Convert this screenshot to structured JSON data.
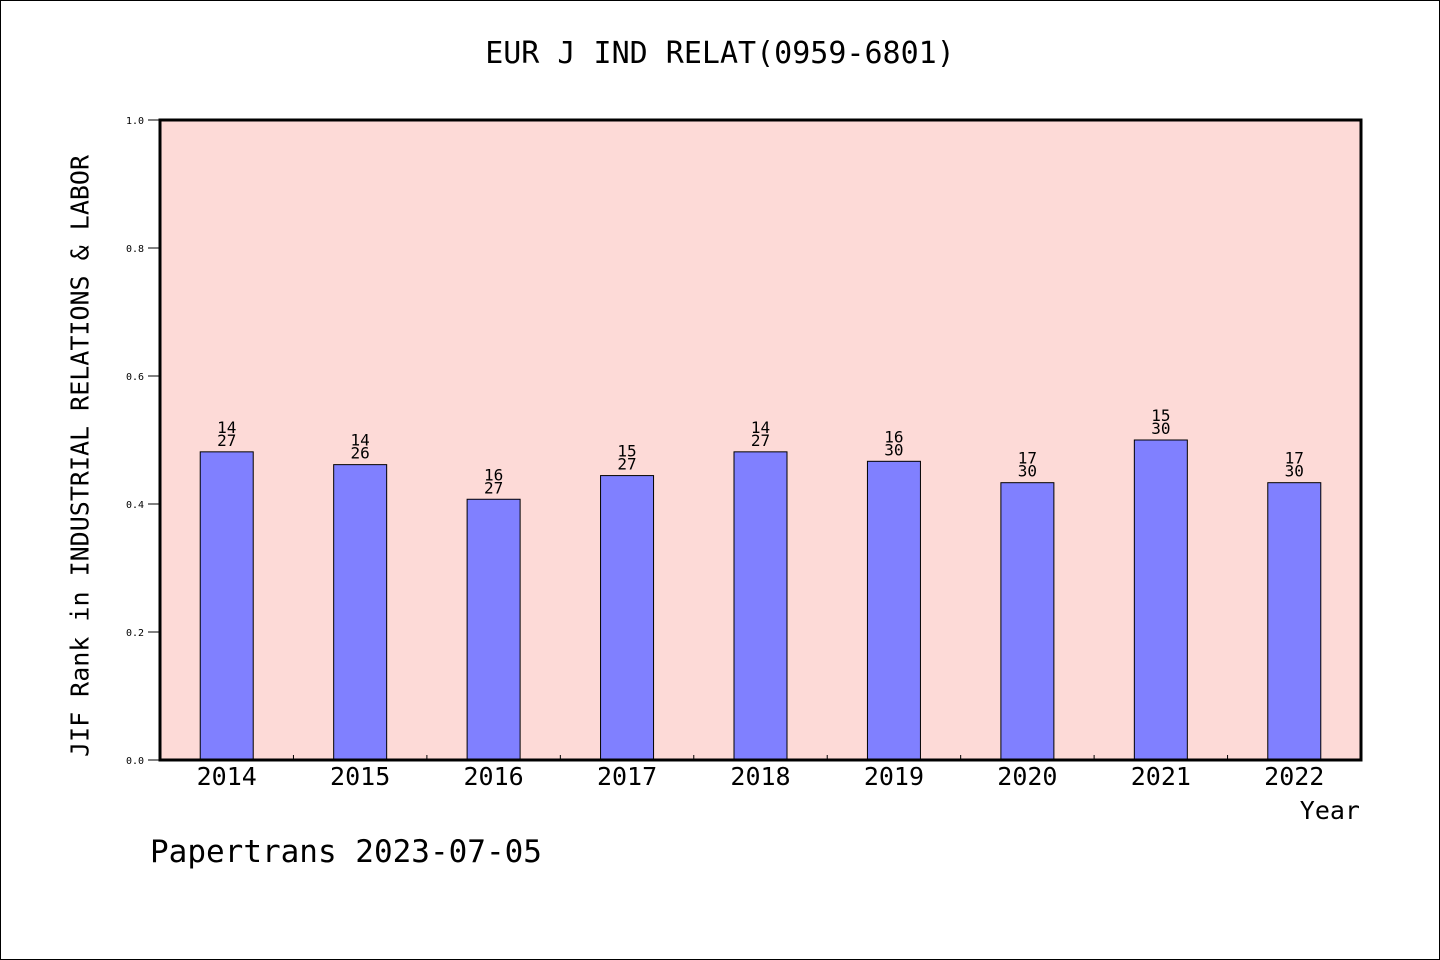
{
  "chart_data": {
    "type": "bar",
    "title": "EUR J IND RELAT(0959-6801)",
    "xlabel": "Year",
    "ylabel": "JIF Rank in INDUSTRIAL RELATIONS & LABOR",
    "ylim": [
      0,
      1.0
    ],
    "yticks": [
      "0.0",
      "0.2",
      "0.4",
      "0.6",
      "0.8",
      "1.0"
    ],
    "categories": [
      "2014",
      "2015",
      "2016",
      "2017",
      "2018",
      "2019",
      "2020",
      "2021",
      "2022"
    ],
    "values": [
      0.4815,
      0.4615,
      0.4074,
      0.4444,
      0.4815,
      0.4667,
      0.4333,
      0.5,
      0.4333
    ],
    "rank_labels": [
      [
        "14",
        "27"
      ],
      [
        "14",
        "26"
      ],
      [
        "16",
        "27"
      ],
      [
        "15",
        "27"
      ],
      [
        "14",
        "27"
      ],
      [
        "16",
        "30"
      ],
      [
        "17",
        "30"
      ],
      [
        "15",
        "30"
      ],
      [
        "17",
        "30"
      ]
    ],
    "colors": {
      "plot_bg": "#fddad7",
      "bar": "#8080ff",
      "axis": "#000000"
    }
  },
  "footer": "Papertrans 2023-07-05"
}
